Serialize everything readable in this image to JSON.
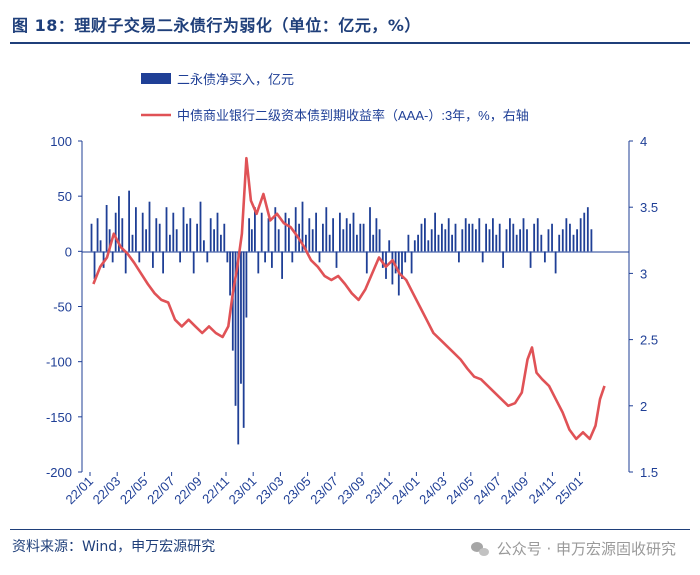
{
  "header": {
    "title": "图 18：理财子交易二永债行为弱化（单位：亿元，%）"
  },
  "footer": {
    "source": "资料来源：Wind，申万宏源研究",
    "watermark": "公众号 · 申万宏源固收研究"
  },
  "chart_data": {
    "type": "bar+line",
    "legend": {
      "placement": "top-left",
      "entries": [
        {
          "name": "二永债净买入，亿元",
          "kind": "bar",
          "color": "#1f3f96"
        },
        {
          "name": "中债商业银行二级资本债到期收益率（AAA-）:3年，%，右轴",
          "kind": "line",
          "color": "#e05256"
        }
      ]
    },
    "x_ticks": [
      "22/01",
      "22/03",
      "22/05",
      "22/07",
      "22/09",
      "22/11",
      "23/01",
      "23/03",
      "23/05",
      "23/07",
      "23/09",
      "23/11",
      "24/01",
      "24/03",
      "24/05",
      "24/07",
      "24/09",
      "24/11",
      "25/01"
    ],
    "y_left": {
      "min": -200,
      "max": 100,
      "ticks": [
        100,
        50,
        0,
        -50,
        -100,
        -150,
        -200
      ]
    },
    "y_right": {
      "min": 1.5,
      "max": 4,
      "ticks": [
        "4",
        "3.5",
        "3",
        "2.5",
        "2",
        "1.5"
      ]
    },
    "bar_series": {
      "name": "二永债净买入，亿元",
      "color": "#1f3f96",
      "frequency": "weekly, approximate envelope",
      "segments": [
        {
          "from": "22/01",
          "to": "22/03",
          "values": [
            25,
            -25,
            30,
            10,
            -15,
            42,
            20,
            -10,
            35
          ]
        },
        {
          "from": "22/03",
          "to": "22/07",
          "values": [
            50,
            30,
            -20,
            55,
            15,
            40,
            -10,
            35,
            20,
            45,
            -15,
            30,
            25,
            -20,
            40,
            15
          ]
        },
        {
          "from": "22/07",
          "to": "22/11",
          "values": [
            35,
            20,
            -10,
            40,
            25,
            30,
            -20,
            25,
            45,
            10,
            -10,
            30,
            20,
            35,
            15,
            25
          ]
        },
        {
          "from": "22/11",
          "to": "23/01",
          "values": [
            -10,
            -40,
            -90,
            -140,
            -175,
            -120,
            -160,
            -60,
            30,
            20
          ]
        },
        {
          "from": "23/01",
          "to": "23/05",
          "values": [
            40,
            -20,
            35,
            -10,
            30,
            -15,
            40,
            20,
            -25,
            35,
            30,
            -10,
            40,
            25,
            45,
            15
          ]
        },
        {
          "from": "23/05",
          "to": "23/09",
          "values": [
            30,
            20,
            35,
            -10,
            25,
            40,
            15,
            30,
            -15,
            35,
            20,
            30,
            25,
            35,
            15,
            25
          ]
        },
        {
          "from": "23/09",
          "to": "24/01",
          "values": [
            25,
            -20,
            40,
            15,
            30,
            20,
            -15,
            -25,
            10,
            -30,
            -20,
            -40,
            -25,
            -10,
            15,
            -20,
            10
          ]
        },
        {
          "from": "24/01",
          "to": "24/05",
          "values": [
            15,
            25,
            30,
            10,
            20,
            35,
            15,
            25,
            20,
            30,
            15,
            25,
            -10,
            20,
            30,
            25
          ]
        },
        {
          "from": "24/05",
          "to": "24/09",
          "values": [
            25,
            20,
            30,
            -10,
            25,
            20,
            30,
            15,
            25,
            -15,
            20,
            30,
            25,
            15,
            20,
            30
          ]
        },
        {
          "from": "24/09",
          "to": "25/02",
          "values": [
            20,
            -15,
            25,
            30,
            15,
            -10,
            20,
            25,
            -20,
            15,
            20,
            30,
            25,
            15,
            20,
            30,
            35,
            40,
            20
          ]
        }
      ]
    },
    "line_series": {
      "name": "中债商业银行二级资本债到期收益率（AAA-）:3年，%，右轴",
      "color": "#e05256",
      "points": [
        [
          "22/01",
          2.92
        ],
        [
          "22/01",
          3.05
        ],
        [
          "22/02",
          3.12
        ],
        [
          "22/02",
          3.3
        ],
        [
          "22/03",
          3.2
        ],
        [
          "22/03",
          3.15
        ],
        [
          "22/04",
          3.08
        ],
        [
          "22/04",
          3.0
        ],
        [
          "22/05",
          2.92
        ],
        [
          "22/05",
          2.85
        ],
        [
          "22/06",
          2.8
        ],
        [
          "22/06",
          2.78
        ],
        [
          "22/07",
          2.65
        ],
        [
          "22/07",
          2.6
        ],
        [
          "22/08",
          2.65
        ],
        [
          "22/08",
          2.6
        ],
        [
          "22/09",
          2.55
        ],
        [
          "22/09",
          2.6
        ],
        [
          "22/10",
          2.55
        ],
        [
          "22/10",
          2.52
        ],
        [
          "22/11",
          2.6
        ],
        [
          "22/11",
          2.85
        ],
        [
          "22/11",
          3.05
        ],
        [
          "22/12",
          3.3
        ],
        [
          "22/12",
          3.87
        ],
        [
          "22/12",
          3.55
        ],
        [
          "23/01",
          3.45
        ],
        [
          "23/01",
          3.6
        ],
        [
          "23/02",
          3.4
        ],
        [
          "23/02",
          3.45
        ],
        [
          "23/03",
          3.38
        ],
        [
          "23/03",
          3.35
        ],
        [
          "23/04",
          3.28
        ],
        [
          "23/04",
          3.2
        ],
        [
          "23/05",
          3.1
        ],
        [
          "23/05",
          3.05
        ],
        [
          "23/06",
          2.98
        ],
        [
          "23/06",
          2.95
        ],
        [
          "23/07",
          2.98
        ],
        [
          "23/07",
          2.92
        ],
        [
          "23/08",
          2.85
        ],
        [
          "23/08",
          2.8
        ],
        [
          "23/09",
          2.88
        ],
        [
          "23/09",
          3.0
        ],
        [
          "23/10",
          3.12
        ],
        [
          "23/10",
          3.05
        ],
        [
          "23/11",
          3.1
        ],
        [
          "23/11",
          3.0
        ],
        [
          "23/12",
          2.95
        ],
        [
          "23/12",
          2.85
        ],
        [
          "24/01",
          2.75
        ],
        [
          "24/01",
          2.65
        ],
        [
          "24/02",
          2.55
        ],
        [
          "24/02",
          2.5
        ],
        [
          "24/03",
          2.45
        ],
        [
          "24/03",
          2.4
        ],
        [
          "24/04",
          2.35
        ],
        [
          "24/04",
          2.28
        ],
        [
          "24/05",
          2.22
        ],
        [
          "24/05",
          2.2
        ],
        [
          "24/06",
          2.15
        ],
        [
          "24/06",
          2.1
        ],
        [
          "24/07",
          2.05
        ],
        [
          "24/07",
          2.0
        ],
        [
          "24/08",
          2.02
        ],
        [
          "24/08",
          2.1
        ],
        [
          "24/09",
          2.35
        ],
        [
          "24/09",
          2.44
        ],
        [
          "24/09",
          2.25
        ],
        [
          "24/10",
          2.2
        ],
        [
          "24/10",
          2.15
        ],
        [
          "24/11",
          2.05
        ],
        [
          "24/11",
          1.95
        ],
        [
          "24/12",
          1.82
        ],
        [
          "24/12",
          1.75
        ],
        [
          "25/01",
          1.8
        ],
        [
          "25/01",
          1.75
        ],
        [
          "25/02",
          1.85
        ],
        [
          "25/02",
          2.05
        ],
        [
          "25/02",
          2.15
        ]
      ]
    }
  }
}
